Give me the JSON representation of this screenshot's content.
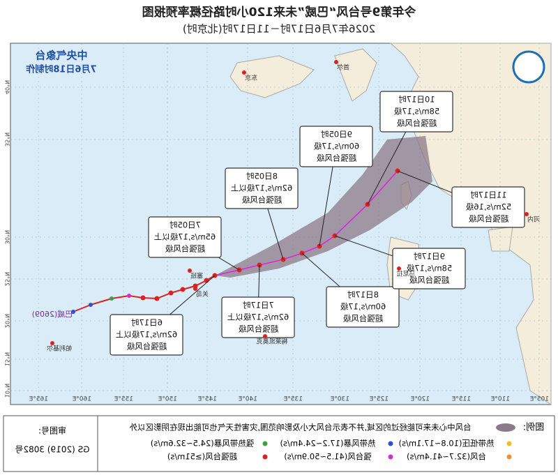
{
  "header": {
    "title": "今年第9号台风“巴威”未来120小时路径概率预报图",
    "subtitle": "2026年7月6日17时－11日17时(北京时)",
    "agency": "中央气象台",
    "made": "7月6日18时制作"
  },
  "storm_label": "巴威(2609)",
  "forecasts": [
    {
      "time": "6日17时",
      "wind": "62m/s,17级以上",
      "level": "超强台风级"
    },
    {
      "time": "7日05时",
      "wind": "65m/s,17级以上",
      "level": "超强台风级"
    },
    {
      "time": "7日17时",
      "wind": "62m/s,17级以上",
      "level": "超强台风级"
    },
    {
      "time": "8日05时",
      "wind": "62m/s,17级以上",
      "level": "超强台风级"
    },
    {
      "time": "8日17时",
      "wind": "60m/s,17级",
      "level": "超强台风级"
    },
    {
      "time": "9日05时",
      "wind": "60m/s,17级",
      "level": "超强台风级"
    },
    {
      "time": "9日17时",
      "wind": "58m/s,17级",
      "level": "超强台风级"
    },
    {
      "time": "10日17时",
      "wind": "58m/s,17级",
      "level": "超强台风级"
    },
    {
      "time": "11日17时",
      "wind": "52m/s,16级",
      "level": "超强台风级"
    }
  ],
  "places": [
    "东京",
    "首尔",
    "塞班",
    "关岛",
    "梅莱凯奥克",
    "帕利基尔",
    "马尼拉",
    "河内"
  ],
  "lon_labels": [
    "165°E",
    "160°E",
    "155°E",
    "150°E",
    "145°E",
    "140°E",
    "135°E",
    "130°E",
    "125°E",
    "120°E",
    "115°E",
    "110°E",
    "105°E"
  ],
  "lat_labels": [
    "40°N",
    "35°N",
    "30°N",
    "25°N",
    "20°N",
    "15°N",
    "10°N"
  ],
  "legend": {
    "title": "图例:",
    "cone": "台风中心未来可能经过的区域,并不表示台风大小及影响范围,灾害性天气也可能出现在阴影区以外",
    "items": [
      "热带低压(10.8~17.1m/s)",
      "热带风暴(17.2~24.4m/s)",
      "强热带风暴(24.5~32.6m/s)",
      "台风(32.7~41.4m/s)",
      "强台风(41.5~50.9m/s)",
      "超强台风(≥51m/s)"
    ]
  },
  "map_number": {
    "label": "审图号:",
    "code": "GS (2019) 3082号"
  }
}
